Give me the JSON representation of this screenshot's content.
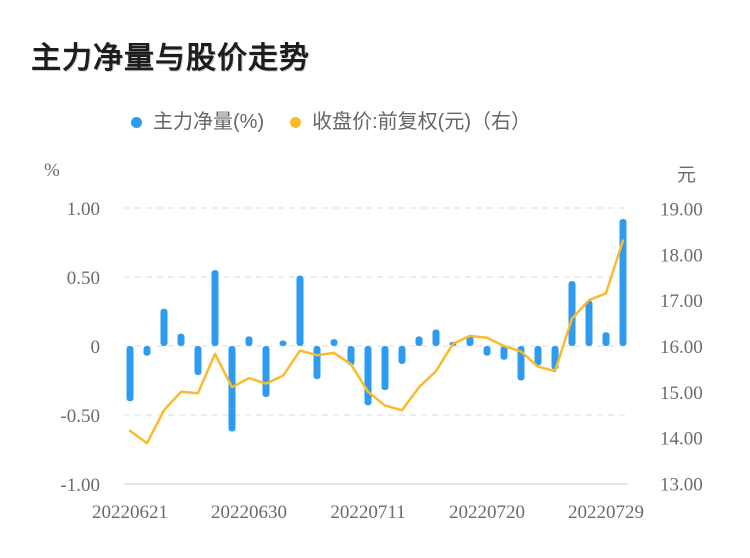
{
  "title": "主力净量与股价走势",
  "legend": {
    "items": [
      {
        "label": "主力净量(%)",
        "color": "#2d9bf0"
      },
      {
        "label": "收盘价:前复权(元)（右）",
        "color": "#fbba2d"
      }
    ]
  },
  "chart_data": {
    "type": "bar+line",
    "title": "主力净量与股价走势",
    "grid": "horizontal dashed",
    "legend_position": "top-center",
    "x_count": 30,
    "x_tick_labels": [
      "20220621",
      "20220630",
      "20220711",
      "20220720",
      "20220729"
    ],
    "x_tick_positions": [
      0,
      7,
      14,
      21,
      28
    ],
    "left_axis": {
      "unit": "%",
      "min": -1.0,
      "max": 1.0,
      "ticks": [
        {
          "label": "1.00",
          "value": 1.0
        },
        {
          "label": "0.50",
          "value": 0.5
        },
        {
          "label": "0",
          "value": 0.0
        },
        {
          "label": "-0.50",
          "value": -0.5
        },
        {
          "label": "-1.00",
          "value": -1.0
        }
      ]
    },
    "right_axis": {
      "unit": "元",
      "min": 13.0,
      "max": 19.0,
      "ticks": [
        {
          "label": "19.00",
          "value": 19.0
        },
        {
          "label": "18.00",
          "value": 18.0
        },
        {
          "label": "17.00",
          "value": 17.0
        },
        {
          "label": "16.00",
          "value": 16.0
        },
        {
          "label": "15.00",
          "value": 15.0
        },
        {
          "label": "14.00",
          "value": 14.0
        },
        {
          "label": "13.00",
          "value": 13.0
        }
      ]
    },
    "series": [
      {
        "name": "主力净量(%)",
        "type": "bar",
        "axis": "left",
        "color": "#2d9bf0",
        "values": [
          -0.4,
          -0.07,
          0.27,
          0.09,
          -0.21,
          0.55,
          -0.62,
          0.07,
          -0.37,
          0.04,
          0.51,
          -0.24,
          0.05,
          -0.14,
          -0.43,
          -0.32,
          -0.13,
          0.07,
          0.12,
          0.03,
          0.08,
          -0.07,
          -0.1,
          -0.25,
          -0.14,
          -0.17,
          0.47,
          0.33,
          0.1,
          0.92
        ]
      },
      {
        "name": "收盘价:前复权(元)（右）",
        "type": "line",
        "axis": "right",
        "color": "#fbba2d",
        "values": [
          14.15,
          13.88,
          14.6,
          15.0,
          14.97,
          15.83,
          15.1,
          15.3,
          15.18,
          15.35,
          15.9,
          15.8,
          15.85,
          15.6,
          15.0,
          14.7,
          14.6,
          15.1,
          15.45,
          16.05,
          16.22,
          16.18,
          16.0,
          15.88,
          15.55,
          15.45,
          16.6,
          17.0,
          17.15,
          18.3
        ]
      }
    ],
    "style": {
      "grid_color": "#e9e9e9",
      "axis_line_color": "#dddddd",
      "tick_text_color": "#6b6b6b",
      "background": "#ffffff"
    }
  }
}
